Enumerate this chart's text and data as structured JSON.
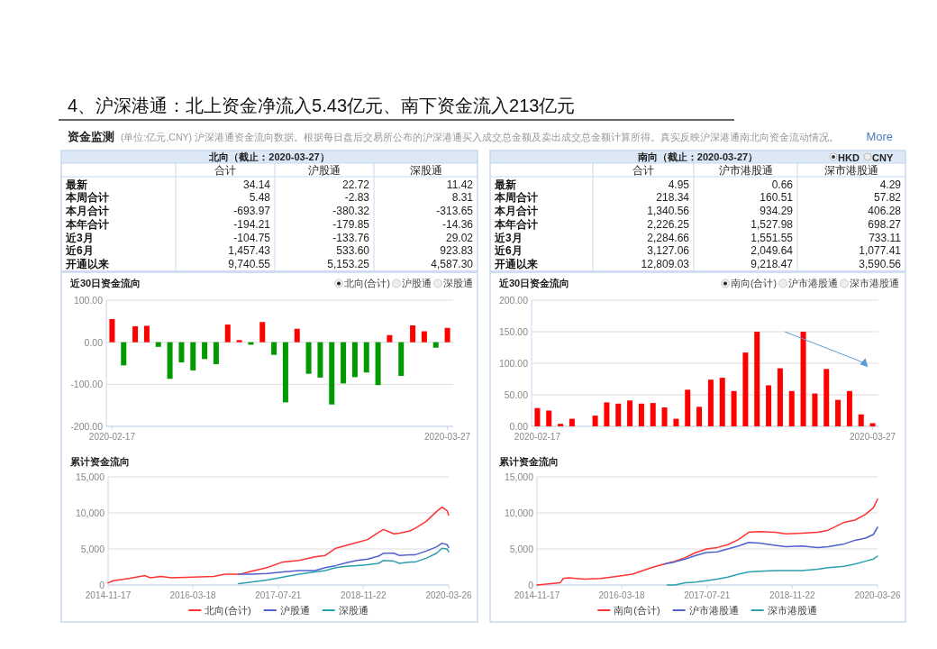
{
  "chart_data": [
    {
      "type": "other",
      "title": "4、沪深港通：北上资金净流入5.43亿元、南下资金流入213亿元",
      "subtitle": "资金监测",
      "annotations": [
        "(单位:亿元,CNY)  沪深港通资金流向数据。根据每日盘后交易所公布的沪深港通买入成交总金额及卖出成交总金额计算所得。真实反映沪深港通南北向资金流动情况。",
        "More"
      ]
    },
    {
      "type": "other",
      "title": "北向（截止：2020-03-27）",
      "categories": [
        "合计",
        "沪股通",
        "深股通"
      ],
      "y_categories": [
        "最新",
        "本周合计",
        "本月合计",
        "本年合计",
        "近3月",
        "近6月",
        "开通以来"
      ],
      "cell_labels": [
        [
          "34.14",
          "22.72",
          "11.42"
        ],
        [
          "5.48",
          "-2.83",
          "8.31"
        ],
        [
          "-693.97",
          "-380.32",
          "-313.65"
        ],
        [
          "-194.21",
          "-179.85",
          "-14.36"
        ],
        [
          "-104.75",
          "-133.76",
          "29.02"
        ],
        [
          "1,457.43",
          "533.60",
          "923.83"
        ],
        [
          "9,740.55",
          "5,153.25",
          "4,587.30"
        ]
      ]
    },
    {
      "type": "other",
      "title": "南向（截止：2020-03-27）",
      "annotations": [
        "HKD",
        "CNY"
      ],
      "categories": [
        "合计",
        "沪市港股通",
        "深市港股通"
      ],
      "y_categories": [
        "最新",
        "本周合计",
        "本月合计",
        "本年合计",
        "近3月",
        "近6月",
        "开通以来"
      ],
      "cell_labels": [
        [
          "4.95",
          "0.66",
          "4.29"
        ],
        [
          "218.34",
          "160.51",
          "57.82"
        ],
        [
          "1,340.56",
          "934.29",
          "406.28"
        ],
        [
          "2,226.25",
          "1,527.98",
          "698.27"
        ],
        [
          "2,284.66",
          "1,551.55",
          "733.11"
        ],
        [
          "3,127.06",
          "2,049.64",
          "1,077.41"
        ],
        [
          "12,809.03",
          "9,218.47",
          "3,590.56"
        ]
      ]
    },
    {
      "type": "bar",
      "title": "近30日资金流向",
      "annotations": [
        "北向(合计)",
        "沪股通",
        "深股通"
      ],
      "grid": "y",
      "categories": [
        "2020-02-17",
        null,
        null,
        null,
        null,
        null,
        null,
        null,
        null,
        null,
        null,
        null,
        null,
        null,
        null,
        null,
        null,
        null,
        null,
        null,
        null,
        null,
        null,
        null,
        null,
        null,
        null,
        null,
        null,
        "2020-03-27"
      ],
      "values": [
        55,
        -55,
        38,
        39,
        -11,
        -87,
        -48,
        -67,
        -40,
        -52,
        42,
        5,
        -6,
        48,
        -30,
        -143,
        32,
        -75,
        -84,
        -148,
        -98,
        -83,
        -72,
        -102,
        17,
        -80,
        40,
        26,
        -13,
        34
      ],
      "colors": [
        "#ff0000",
        "#009900",
        "#ff0000",
        "#ff0000",
        "#009900",
        "#009900",
        "#009900",
        "#009900",
        "#009900",
        "#009900",
        "#ff0000",
        "#ff0000",
        "#009900",
        "#ff0000",
        "#009900",
        "#009900",
        "#ff0000",
        "#009900",
        "#009900",
        "#009900",
        "#009900",
        "#009900",
        "#009900",
        "#009900",
        "#ff0000",
        "#009900",
        "#ff0000",
        "#ff0000",
        "#009900",
        "#ff0000"
      ],
      "ylim": [
        -200,
        100
      ],
      "yticks": [
        {
          "value": -200,
          "label": "-200.00"
        },
        {
          "value": -100,
          "label": "-100.00"
        },
        {
          "value": 0,
          "label": "0.00"
        },
        {
          "value": 100,
          "label": "100.00"
        }
      ]
    },
    {
      "type": "bar",
      "title": "近30日资金流向",
      "annotations": [
        "南向(合计)",
        "沪市港股通",
        "深市港股通"
      ],
      "grid": "y",
      "categories": [
        "2020-02-17",
        null,
        null,
        null,
        null,
        null,
        null,
        null,
        null,
        null,
        null,
        null,
        null,
        null,
        null,
        null,
        null,
        null,
        null,
        null,
        null,
        null,
        null,
        null,
        null,
        null,
        null,
        null,
        null,
        "2020-03-27"
      ],
      "values": [
        29,
        25,
        4,
        12,
        null,
        17,
        38,
        36,
        41,
        36,
        37,
        30,
        12,
        58,
        31,
        74,
        77,
        56,
        117,
        150,
        65,
        92,
        56,
        150,
        52,
        91,
        42,
        56,
        19,
        5
      ],
      "color": "#ff0000",
      "ylim": [
        0,
        200
      ],
      "yticks": [
        {
          "value": 0,
          "label": "0.00"
        },
        {
          "value": 50,
          "label": "50.00"
        },
        {
          "value": 100,
          "label": "100.00"
        },
        {
          "value": 150,
          "label": "150.00"
        },
        {
          "value": 200,
          "label": "200.00"
        }
      ]
    },
    {
      "type": "line",
      "title": "累计资金流向",
      "legend": "bottom",
      "grid": "y",
      "xlim": [
        "2014-11-17",
        "2020-03-26"
      ],
      "xticks": [
        "2014-11-17",
        "2016-03-18",
        "2017-07-21",
        "2018-11-22",
        "2020-03-26"
      ],
      "ylim": [
        0,
        15000
      ],
      "yticks": [
        {
          "value": 0,
          "label": "0"
        },
        {
          "value": 5000,
          "label": "5,000"
        },
        {
          "value": 10000,
          "label": "10,000"
        },
        {
          "value": 15000,
          "label": "15,000"
        }
      ],
      "series": [
        {
          "name": "北向(合计)",
          "color": "#ff3333",
          "x": [
            "2014-11-17",
            "2014-12-17",
            "2015-03-17",
            "2015-06-17",
            "2015-07-17",
            "2015-09-17",
            "2015-11-17",
            "2016-03-17",
            "2016-07-17",
            "2016-09-17",
            "2016-12-17",
            "2017-02-17",
            "2017-05-17",
            "2017-08-17",
            "2017-11-17",
            "2018-02-17",
            "2018-04-17",
            "2018-06-17",
            "2018-08-17",
            "2018-10-17",
            "2018-12-17",
            "2019-02-17",
            "2019-03-17",
            "2019-05-17",
            "2019-06-17",
            "2019-08-17",
            "2019-09-17",
            "2019-11-17",
            "2020-01-17",
            "2020-02-17",
            "2020-03-17",
            "2020-03-26"
          ],
          "values": [
            300,
            600,
            900,
            1300,
            1000,
            1200,
            1000,
            1100,
            1200,
            1500,
            1500,
            1900,
            2400,
            3200,
            3400,
            3900,
            4100,
            5100,
            5500,
            5900,
            6300,
            7300,
            7700,
            7100,
            7200,
            7500,
            7900,
            8800,
            10200,
            10800,
            10300,
            9700
          ]
        },
        {
          "name": "沪股通",
          "color": "#5060d0",
          "x": [
            "2016-12-05",
            "2017-02-17",
            "2017-05-17",
            "2017-08-17",
            "2017-11-17",
            "2018-02-17",
            "2018-04-17",
            "2018-06-17",
            "2018-08-17",
            "2018-10-17",
            "2018-12-17",
            "2019-02-17",
            "2019-03-17",
            "2019-05-17",
            "2019-06-17",
            "2019-08-17",
            "2019-09-17",
            "2019-11-17",
            "2020-01-17",
            "2020-02-17",
            "2020-03-17",
            "2020-03-26"
          ],
          "values": [
            1500,
            1500,
            1600,
            1800,
            2000,
            2000,
            2400,
            2700,
            3100,
            3400,
            3600,
            4000,
            4400,
            4400,
            4100,
            4200,
            4200,
            4700,
            5300,
            5800,
            5600,
            5200
          ]
        },
        {
          "name": "深股通",
          "color": "#2aa0b0",
          "x": [
            "2016-12-05",
            "2017-02-17",
            "2017-05-17",
            "2017-08-17",
            "2017-11-17",
            "2018-02-17",
            "2018-04-17",
            "2018-06-17",
            "2018-08-17",
            "2018-10-17",
            "2018-12-17",
            "2019-02-17",
            "2019-03-17",
            "2019-05-17",
            "2019-06-17",
            "2019-08-17",
            "2019-09-17",
            "2019-11-17",
            "2020-01-17",
            "2020-02-17",
            "2020-03-17",
            "2020-03-26"
          ],
          "values": [
            200,
            400,
            700,
            1100,
            1500,
            1800,
            2000,
            2400,
            2600,
            2700,
            2800,
            3000,
            3400,
            3300,
            3000,
            3200,
            3200,
            3700,
            4400,
            5100,
            5000,
            4600
          ]
        }
      ]
    },
    {
      "type": "line",
      "title": "累计资金流向",
      "legend": "bottom",
      "grid": "y",
      "xlim": [
        "2014-11-17",
        "2020-03-26"
      ],
      "xticks": [
        "2014-11-17",
        "2016-03-18",
        "2017-07-21",
        "2018-11-22",
        "2020-03-26"
      ],
      "ylim": [
        0,
        15000
      ],
      "yticks": [
        {
          "value": 0,
          "label": "0"
        },
        {
          "value": 5000,
          "label": "5,000"
        },
        {
          "value": 10000,
          "label": "10,000"
        },
        {
          "value": 15000,
          "label": "15,000"
        }
      ],
      "series": [
        {
          "name": "南向(合计)",
          "color": "#ff3333",
          "x": [
            "2014-11-17",
            "2015-03-30",
            "2015-04-17",
            "2015-05-17",
            "2015-08-17",
            "2015-11-17",
            "2016-02-17",
            "2016-05-17",
            "2016-07-17",
            "2016-09-17",
            "2016-11-17",
            "2017-01-17",
            "2017-03-17",
            "2017-05-17",
            "2017-07-17",
            "2017-09-17",
            "2017-11-17",
            "2018-01-17",
            "2018-03-17",
            "2018-05-17",
            "2018-08-17",
            "2018-10-17",
            "2019-01-17",
            "2019-04-17",
            "2019-06-17",
            "2019-09-17",
            "2019-11-17",
            "2020-01-17",
            "2020-03-02",
            "2020-03-26"
          ],
          "values": [
            0,
            300,
            900,
            1000,
            800,
            900,
            1200,
            1500,
            2000,
            2500,
            2900,
            3300,
            3800,
            4500,
            5000,
            5200,
            5600,
            6300,
            7300,
            7400,
            7300,
            7100,
            7200,
            7300,
            7600,
            8700,
            9000,
            9800,
            10700,
            11900
          ]
        },
        {
          "name": "沪市港股通",
          "color": "#5060d0",
          "x": [
            "2016-11-17",
            "2017-01-17",
            "2017-03-17",
            "2017-05-17",
            "2017-07-17",
            "2017-09-17",
            "2017-11-17",
            "2018-01-17",
            "2018-03-17",
            "2018-05-17",
            "2018-08-17",
            "2018-10-17",
            "2019-01-17",
            "2019-04-17",
            "2019-06-17",
            "2019-09-17",
            "2019-11-17",
            "2020-01-17",
            "2020-03-02",
            "2020-03-26"
          ],
          "values": [
            2900,
            3200,
            3600,
            4100,
            4500,
            4600,
            5000,
            5400,
            5900,
            5800,
            5500,
            5300,
            5400,
            5200,
            5300,
            5700,
            6200,
            6500,
            7000,
            8000
          ]
        },
        {
          "name": "深市港股通",
          "color": "#2aa0b0",
          "x": [
            "2016-12-05",
            "2017-01-17",
            "2017-03-17",
            "2017-05-17",
            "2017-07-17",
            "2017-09-17",
            "2017-11-17",
            "2018-01-17",
            "2018-03-17",
            "2018-05-17",
            "2018-08-17",
            "2018-10-17",
            "2019-01-17",
            "2019-04-17",
            "2019-06-17",
            "2019-09-17",
            "2019-11-17",
            "2020-01-17",
            "2020-03-02",
            "2020-03-26"
          ],
          "values": [
            0,
            0,
            300,
            400,
            600,
            800,
            1100,
            1500,
            1800,
            1900,
            2000,
            2000,
            2000,
            2200,
            2400,
            2600,
            2900,
            3300,
            3600,
            4000
          ]
        }
      ]
    }
  ]
}
